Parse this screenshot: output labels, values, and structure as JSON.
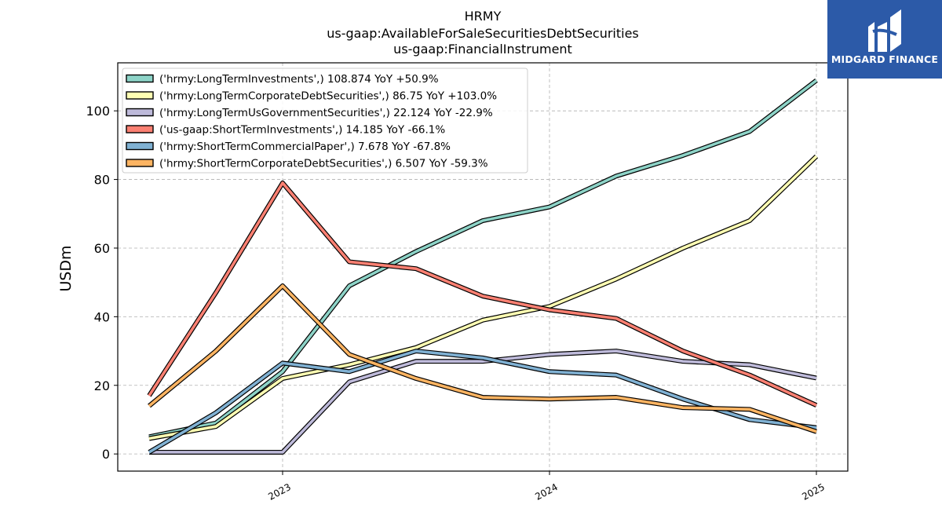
{
  "chart_data": {
    "type": "line",
    "title": [
      "HRMY",
      "us-gaap:AvailableForSaleSecuritiesDebtSecurities",
      "us-gaap:FinancialInstrument"
    ],
    "ylabel": "USDm",
    "xlabel": "",
    "ylim": [
      -5,
      114
    ],
    "yticks": [
      0,
      20,
      40,
      60,
      80,
      100
    ],
    "xticks": [
      {
        "label": "2023",
        "pos": 2
      },
      {
        "label": "2024",
        "pos": 6
      },
      {
        "label": "2025",
        "pos": 10
      }
    ],
    "x": [
      0,
      1,
      2,
      3,
      4,
      5,
      6,
      7,
      8,
      9,
      10
    ],
    "grid": true,
    "legend_position": "top-left",
    "series": [
      {
        "name": "('hrmy:LongTermInvestments',) 108.874 YoY +50.9%",
        "color": "#8dd3c7",
        "values": [
          5,
          9,
          24,
          49,
          59,
          68,
          72,
          81,
          87,
          94,
          108.874
        ]
      },
      {
        "name": "('hrmy:LongTermCorporateDebtSecurities',) 86.75 YoY +103.0%",
        "color": "#ffffb3",
        "values": [
          4.5,
          8,
          22,
          26,
          31,
          39,
          43,
          51,
          60,
          68,
          86.75
        ]
      },
      {
        "name": "('hrmy:LongTermUsGovernmentSecurities',) 22.124 YoY -22.9%",
        "color": "#bebada",
        "values": [
          0.5,
          0.5,
          0.5,
          21,
          27,
          27,
          29,
          30,
          27,
          26,
          22.124
        ]
      },
      {
        "name": "('us-gaap:ShortTermInvestments',) 14.185 YoY -66.1%",
        "color": "#fb8072",
        "values": [
          17,
          47,
          79,
          56,
          54,
          46,
          42,
          39.5,
          30,
          23,
          14.185
        ]
      },
      {
        "name": "('hrmy:ShortTermCommercialPaper',) 7.678 YoY -67.8%",
        "color": "#80b1d3",
        "values": [
          0.5,
          12,
          26.5,
          24,
          30,
          28,
          24,
          23,
          16,
          10,
          7.678
        ]
      },
      {
        "name": "('hrmy:ShortTermCorporateDebtSecurities',) 6.507 YoY -59.3%",
        "color": "#fdb462",
        "values": [
          14,
          30,
          49,
          29,
          22,
          16.5,
          16,
          16.5,
          13.5,
          13,
          6.507
        ]
      }
    ]
  },
  "logo": {
    "text": "MIDGARD FINANCE"
  }
}
